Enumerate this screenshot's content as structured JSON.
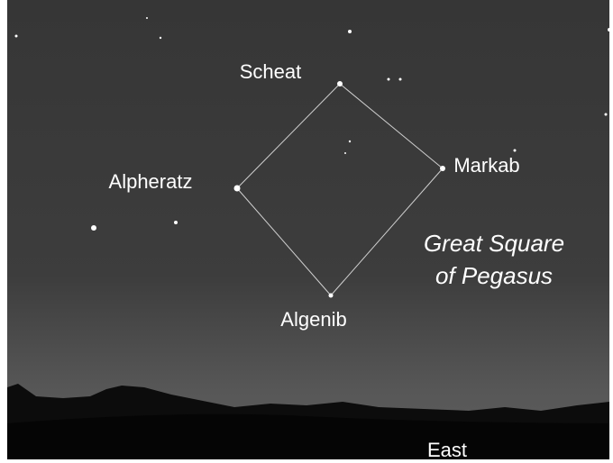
{
  "stars": [
    "Scheat",
    "Markab",
    "Algenib",
    "Alpheratz"
  ],
  "caption": [
    "Great Square",
    "of Pegasus"
  ],
  "direction": "East"
}
